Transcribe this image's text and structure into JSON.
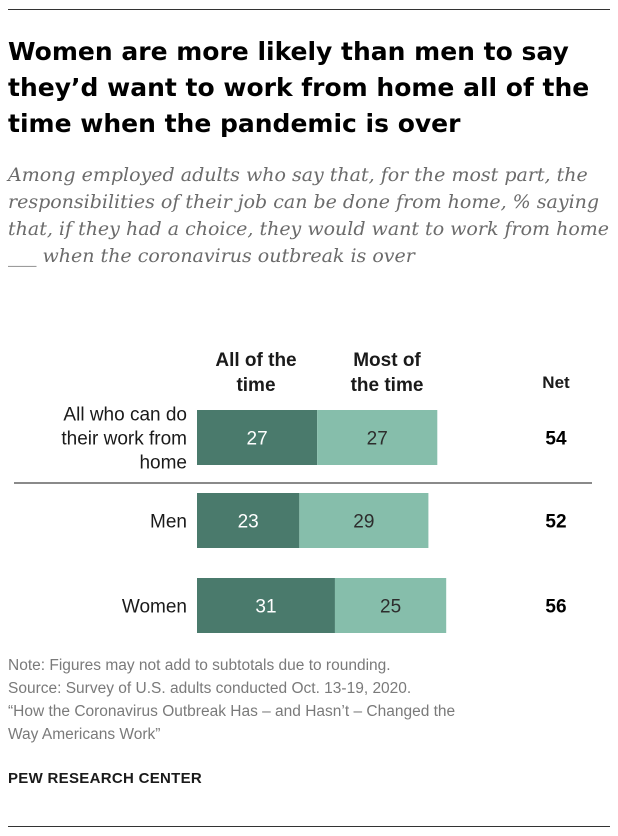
{
  "title": "Women are more likely than men to say they’d want to work from home all of the time when the pandemic is over",
  "subtitle": "Among employed adults who say that, for the most part, the responsibilities of their job can be done from home, % saying that, if they had a choice, they would want to work from home ___ when the coronavirus outbreak is over",
  "chart_data": {
    "type": "bar",
    "orientation": "horizontal",
    "stacked": true,
    "categories": [
      "All who can do their work from home",
      "Men",
      "Women"
    ],
    "category_lines": [
      [
        "All who can do",
        "their work from",
        "home"
      ],
      [
        "Men"
      ],
      [
        "Women"
      ]
    ],
    "series": [
      {
        "name": "All of the time",
        "name_lines": [
          "All of the",
          "time"
        ],
        "values": [
          27,
          23,
          31
        ],
        "color": "#4a7a6c"
      },
      {
        "name": "Most of the time",
        "name_lines": [
          "Most of",
          "the time"
        ],
        "values": [
          27,
          29,
          25
        ],
        "color": "#86beab"
      }
    ],
    "net": {
      "label": "Net",
      "values": [
        54,
        52,
        56
      ]
    },
    "divider_after_category": 0,
    "legend": "column headers above bars",
    "grid": false
  },
  "footer": {
    "note": "Note: Figures may not add to subtotals due to rounding.",
    "source": "Source: Survey of U.S. adults conducted Oct. 13-19, 2020.",
    "report_line1": "“How the Coronavirus Outbreak Has – and Hasn’t – Changed the",
    "report_line2": "Way Americans Work”",
    "organization": "PEW RESEARCH CENTER"
  },
  "colors": {
    "dark_green": "#4a7a6c",
    "light_green": "#86beab",
    "rule": "#333333"
  }
}
